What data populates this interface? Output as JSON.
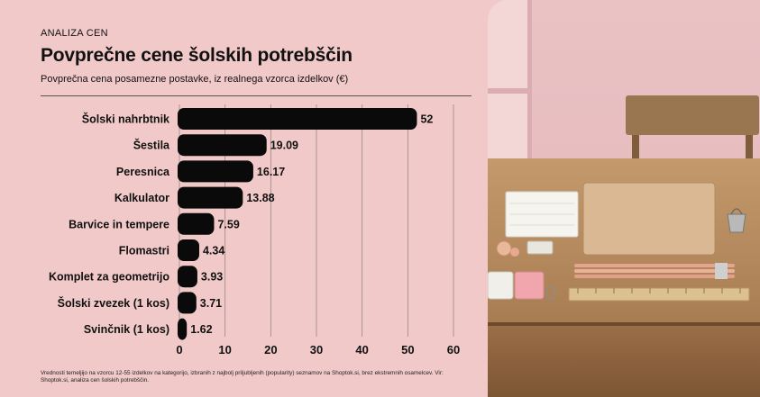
{
  "eyebrow": "ANALIZA CEN",
  "title": "Povprečne cene šolskih potrebščin",
  "subtitle": "Povprečna cena posamezne postavke, iz realnega vzorca izdelkov (€)",
  "note": "Vrednosti temeljijo na vzorcu 12-55 izdelkov na kategorijo, izbranih z najbolj priljubljenih (popularity) seznamov na Shoptok.si, brez ekstremnih osamelcev. Vir: Shoptok.si, analiza cen šolskih potrebščin.",
  "colors": {
    "background": "#f2c9c9",
    "bar": "#0a0a0a",
    "grid": "#9a8585"
  },
  "chart_data": {
    "type": "bar",
    "orientation": "horizontal",
    "categories": [
      "Šolski nahrbtnik",
      "Šestila",
      "Peresnica",
      "Kalkulator",
      "Barvice in tempere",
      "Flomastri",
      "Komplet za geometrijo",
      "Šolski zvezek (1 kos)",
      "Svinčnik (1 kos)"
    ],
    "values": [
      52,
      19.09,
      16.17,
      13.88,
      7.59,
      4.34,
      3.93,
      3.71,
      1.62
    ],
    "value_labels": [
      "52",
      "19.09",
      "16.17",
      "13.88",
      "7.59",
      "4.34",
      "3.93",
      "3.71",
      "1.62"
    ],
    "xlim": [
      0,
      60
    ],
    "xticks": [
      0,
      10,
      20,
      30,
      40,
      50,
      60
    ],
    "xtick_labels": [
      "0",
      "10",
      "20",
      "30",
      "40",
      "50",
      "60"
    ],
    "grid": "vertical"
  },
  "photo": {
    "icons": [
      "notepad-icon",
      "notebook-icon",
      "binder-clip-icon",
      "pencils-icon",
      "ruler-icon",
      "eraser-icon",
      "sharpener-icon",
      "pencil-shavings-icon",
      "paper-clip-icon",
      "chair-icon",
      "window-icon"
    ]
  }
}
